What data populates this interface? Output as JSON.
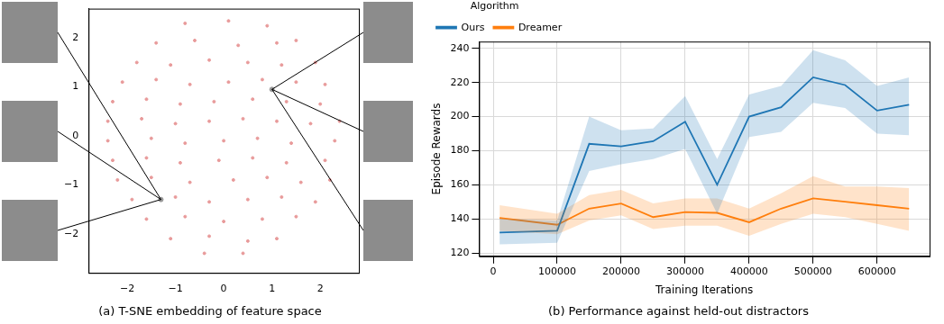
{
  "chart_data": [
    {
      "type": "scatter",
      "title": "(a) T-SNE embedding of feature space",
      "xlim": [
        -2.8,
        2.8
      ],
      "ylim": [
        -2.8,
        2.6
      ],
      "xticks": [
        {
          "value": -2,
          "label": "−2"
        },
        {
          "value": -1,
          "label": "−1"
        },
        0,
        1,
        2
      ],
      "yticks": [
        {
          "value": -2,
          "label": "−2"
        },
        {
          "value": -1,
          "label": "−1"
        },
        0,
        1,
        2
      ],
      "grid": false,
      "color": "#e89a9a",
      "points": [
        [
          -0.8,
          2.3
        ],
        [
          0.1,
          2.35
        ],
        [
          0.9,
          2.25
        ],
        [
          -1.4,
          1.9
        ],
        [
          -0.6,
          1.95
        ],
        [
          0.3,
          1.85
        ],
        [
          1.1,
          1.9
        ],
        [
          1.5,
          1.95
        ],
        [
          -1.8,
          1.5
        ],
        [
          -1.1,
          1.45
        ],
        [
          -0.3,
          1.55
        ],
        [
          0.5,
          1.5
        ],
        [
          1.2,
          1.45
        ],
        [
          1.9,
          1.5
        ],
        [
          -2.1,
          1.1
        ],
        [
          -1.4,
          1.15
        ],
        [
          -0.7,
          1.05
        ],
        [
          0.1,
          1.1
        ],
        [
          0.8,
          1.15
        ],
        [
          1.5,
          1.1
        ],
        [
          2.1,
          1.05
        ],
        [
          -2.3,
          0.7
        ],
        [
          -1.6,
          0.75
        ],
        [
          -0.9,
          0.65
        ],
        [
          -0.2,
          0.7
        ],
        [
          0.6,
          0.75
        ],
        [
          1.3,
          0.7
        ],
        [
          2.0,
          0.65
        ],
        [
          -2.4,
          0.3
        ],
        [
          -1.7,
          0.35
        ],
        [
          -1.0,
          0.25
        ],
        [
          -0.3,
          0.3
        ],
        [
          0.4,
          0.35
        ],
        [
          1.1,
          0.3
        ],
        [
          1.8,
          0.25
        ],
        [
          2.4,
          0.3
        ],
        [
          -2.4,
          -0.1
        ],
        [
          -1.5,
          -0.05
        ],
        [
          -0.8,
          -0.15
        ],
        [
          0.0,
          -0.1
        ],
        [
          0.7,
          -0.05
        ],
        [
          1.4,
          -0.15
        ],
        [
          2.3,
          -0.1
        ],
        [
          -2.3,
          -0.5
        ],
        [
          -1.6,
          -0.45
        ],
        [
          -0.9,
          -0.55
        ],
        [
          -0.1,
          -0.5
        ],
        [
          0.6,
          -0.45
        ],
        [
          1.3,
          -0.55
        ],
        [
          2.1,
          -0.5
        ],
        [
          -2.2,
          -0.9
        ],
        [
          -1.5,
          -0.85
        ],
        [
          -0.7,
          -0.95
        ],
        [
          0.2,
          -0.9
        ],
        [
          0.9,
          -0.85
        ],
        [
          1.6,
          -0.95
        ],
        [
          2.2,
          -0.9
        ],
        [
          -1.9,
          -1.3
        ],
        [
          -1.0,
          -1.25
        ],
        [
          -0.3,
          -1.35
        ],
        [
          0.5,
          -1.3
        ],
        [
          1.2,
          -1.25
        ],
        [
          1.9,
          -1.35
        ],
        [
          -1.6,
          -1.7
        ],
        [
          -0.8,
          -1.65
        ],
        [
          0.0,
          -1.75
        ],
        [
          0.8,
          -1.7
        ],
        [
          1.5,
          -1.65
        ],
        [
          -1.1,
          -2.1
        ],
        [
          -0.3,
          -2.05
        ],
        [
          0.5,
          -2.15
        ],
        [
          1.1,
          -2.1
        ],
        [
          -0.4,
          -2.4
        ],
        [
          0.4,
          -2.4
        ]
      ],
      "highlights": [
        [
          1.0,
          0.95
        ],
        [
          -1.3,
          -1.3
        ]
      ],
      "highlight_color": "#999999"
    },
    {
      "type": "line",
      "title": "(b) Performance against held-out distractors",
      "x_label": "Training Iterations",
      "y_label": "Episode Rewards",
      "x": [
        10000,
        100000,
        150000,
        200000,
        250000,
        300000,
        350000,
        400000,
        450000,
        500000,
        550000,
        600000,
        650000
      ],
      "xlim": [
        -22000,
        682000
      ],
      "ylim": [
        118,
        244
      ],
      "xticks": [
        0,
        100000,
        200000,
        300000,
        400000,
        500000,
        600000
      ],
      "yticks": [
        120,
        140,
        160,
        180,
        200,
        220,
        240
      ],
      "grid": true,
      "legend": "upper left",
      "legend_title": "Algorithm",
      "series": [
        {
          "name": "Ours",
          "color": "#1f77b4",
          "values": [
            132,
            133,
            184,
            182.5,
            185.5,
            197,
            160,
            200,
            205.5,
            223,
            218.5,
            203.5,
            207
          ],
          "lower": [
            125,
            126,
            168,
            172,
            175,
            181,
            143,
            188,
            191,
            208,
            205,
            190,
            189
          ],
          "upper": [
            140,
            139,
            200,
            192,
            193,
            212,
            175,
            213,
            218,
            239,
            233,
            218,
            223
          ]
        },
        {
          "name": "Dreamer",
          "color": "#ff7f0e",
          "values": [
            140.5,
            136.5,
            146,
            149,
            141,
            144,
            143.5,
            138,
            146,
            152,
            150,
            148,
            146
          ],
          "lower": [
            133,
            131,
            139,
            142,
            134,
            136,
            136,
            130,
            137,
            143,
            141,
            137,
            133
          ],
          "upper": [
            148,
            143,
            154,
            157,
            149,
            152,
            152,
            146,
            155,
            165,
            159,
            159,
            158
          ]
        }
      ]
    }
  ]
}
